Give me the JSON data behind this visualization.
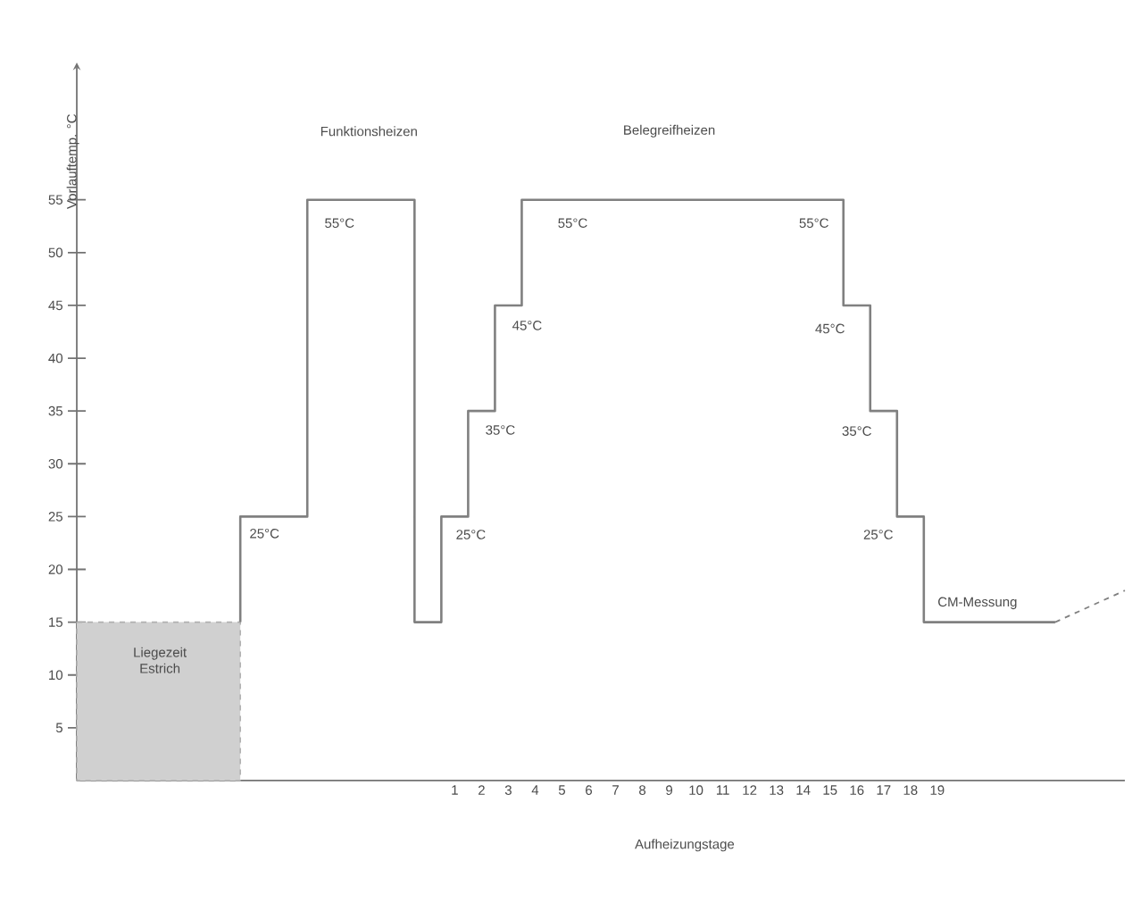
{
  "chart_data": {
    "type": "line",
    "xlabel": "Aufheizungstage",
    "ylabel": "Vorlauftemp. °C",
    "xlim": [
      -13.6,
      25.5
    ],
    "ylim": [
      0,
      68
    ],
    "xticks": [
      {
        "value": 0.5,
        "label": "1"
      },
      {
        "value": 1.5,
        "label": "2"
      },
      {
        "value": 2.5,
        "label": "3"
      },
      {
        "value": 3.5,
        "label": "4"
      },
      {
        "value": 4.5,
        "label": "5"
      },
      {
        "value": 5.5,
        "label": "6"
      },
      {
        "value": 6.5,
        "label": "7"
      },
      {
        "value": 7.5,
        "label": "8"
      },
      {
        "value": 8.5,
        "label": "9"
      },
      {
        "value": 9.5,
        "label": "10"
      },
      {
        "value": 10.5,
        "label": "11"
      },
      {
        "value": 11.5,
        "label": "12"
      },
      {
        "value": 12.5,
        "label": "13"
      },
      {
        "value": 13.5,
        "label": "14"
      },
      {
        "value": 14.5,
        "label": "15"
      },
      {
        "value": 15.5,
        "label": "16"
      },
      {
        "value": 16.5,
        "label": "17"
      },
      {
        "value": 17.5,
        "label": "18"
      },
      {
        "value": 18.5,
        "label": "19"
      }
    ],
    "yticks": [
      5,
      10,
      15,
      20,
      25,
      30,
      35,
      40,
      45,
      50,
      55
    ],
    "grid": false,
    "series": [
      {
        "type": "area",
        "color": "#b0b0b0",
        "line_style": "dashed",
        "x": [
          -13.6,
          -7.5
        ],
        "values": [
          15,
          15
        ]
      },
      {
        "type": "step",
        "color": "#808080",
        "x": [
          -7.5,
          -7.5,
          -5,
          -1,
          0,
          1,
          2,
          3,
          15,
          16,
          17,
          18,
          22.9
        ],
        "values": [
          15,
          25,
          55,
          15,
          25,
          35,
          45,
          55,
          45,
          35,
          25,
          15,
          15
        ]
      },
      {
        "color": "#808080",
        "line_style": "dashed",
        "x": [
          22.9,
          25.5
        ],
        "values": [
          15,
          18
        ]
      }
    ],
    "annotations": [
      "Funktionsheizen",
      "Belegreifheizen",
      "25°C",
      "55°C",
      "25°C",
      "35°C",
      "45°C",
      "55°C",
      "55°C",
      "45°C",
      "35°C",
      "25°C",
      "CM-Messung",
      "Liegezeit Estrich"
    ]
  }
}
